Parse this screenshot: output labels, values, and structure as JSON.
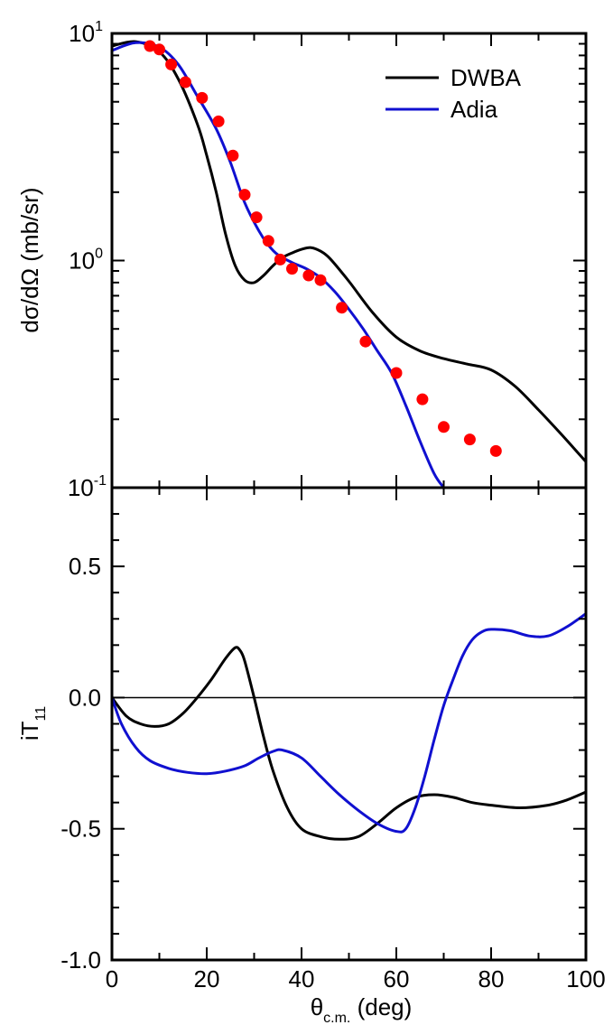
{
  "colors": {
    "dwba": "#000000",
    "adia": "#1010d0",
    "data": "#ff0000",
    "frame": "#000000"
  },
  "chart_data": [
    {
      "type": "line",
      "panel": "top",
      "yscale": "log",
      "xlim": [
        0,
        100
      ],
      "ylim": [
        0.1,
        10
      ],
      "grid": false,
      "legend_placement": "top-right",
      "ylabel": "dσ/dΩ (mb/sr)",
      "x_ticks": [],
      "y_ticks": [
        {
          "base": "10",
          "exp": "-1",
          "value": 0.1
        },
        {
          "base": "10",
          "exp": "0",
          "value": 1
        },
        {
          "base": "10",
          "exp": "1",
          "value": 10
        }
      ],
      "series": [
        {
          "name": "DWBA",
          "x": [
            0,
            5,
            10,
            14,
            18,
            20,
            22,
            24,
            26,
            28,
            30,
            32,
            34,
            36,
            38,
            40,
            42,
            44,
            46,
            50,
            55,
            60,
            65,
            70,
            75,
            80,
            85,
            90,
            95,
            100
          ],
          "y": [
            8.8,
            9.2,
            8.3,
            6.3,
            4.0,
            2.9,
            2.0,
            1.3,
            0.95,
            0.82,
            0.8,
            0.86,
            0.95,
            1.03,
            1.08,
            1.12,
            1.14,
            1.1,
            1.02,
            0.81,
            0.59,
            0.46,
            0.4,
            0.37,
            0.35,
            0.33,
            0.28,
            0.22,
            0.17,
            0.13
          ]
        },
        {
          "name": "Adia",
          "x": [
            0,
            5,
            10,
            14,
            18,
            22,
            25,
            28,
            31,
            33,
            35,
            38,
            41,
            44,
            47,
            50,
            53,
            56,
            59,
            62,
            65,
            68,
            70
          ],
          "y": [
            8.4,
            9.1,
            8.7,
            7.3,
            5.3,
            3.8,
            2.7,
            1.8,
            1.35,
            1.17,
            1.06,
            0.98,
            0.92,
            0.84,
            0.73,
            0.61,
            0.5,
            0.4,
            0.32,
            0.23,
            0.16,
            0.115,
            0.1
          ]
        },
        {
          "name": "",
          "kind": "points",
          "x": [
            8,
            10,
            12.5,
            15.5,
            19,
            22.5,
            25.5,
            28,
            30.5,
            33,
            35.5,
            38,
            41.5,
            44,
            48.5,
            53.5,
            60,
            65.5,
            70,
            75.5,
            81
          ],
          "y": [
            8.8,
            8.5,
            7.3,
            6.1,
            5.2,
            4.1,
            2.9,
            1.95,
            1.55,
            1.22,
            1.01,
            0.92,
            0.86,
            0.82,
            0.62,
            0.44,
            0.32,
            0.245,
            0.185,
            0.163,
            0.145
          ]
        }
      ]
    },
    {
      "type": "line",
      "panel": "bottom",
      "xlim": [
        0,
        100
      ],
      "ylim": [
        -1.0,
        0.8
      ],
      "grid": false,
      "xlabel_main": "θ",
      "xlabel_sub": "c.m.",
      "xlabel_rest": " (deg)",
      "ylabel_main": "iT",
      "ylabel_sub": "11",
      "x_ticks": [
        "0",
        "20",
        "40",
        "60",
        "80",
        "100"
      ],
      "y_ticks": [
        "0.5",
        "0.0",
        "-0.5",
        "-1.0"
      ],
      "y_tick_values": [
        0.5,
        0.0,
        -0.5,
        -1.0
      ],
      "series": [
        {
          "name": "DWBA",
          "x": [
            0,
            3,
            6,
            9,
            12,
            15,
            18,
            21,
            24,
            26,
            27,
            28,
            30,
            32,
            34,
            37,
            40,
            44,
            48,
            52,
            56,
            60,
            64,
            68,
            72,
            76,
            80,
            86,
            92,
            96,
            100
          ],
          "y": [
            0.0,
            -0.07,
            -0.1,
            -0.11,
            -0.1,
            -0.06,
            0.0,
            0.07,
            0.15,
            0.19,
            0.18,
            0.14,
            0.0,
            -0.15,
            -0.28,
            -0.42,
            -0.5,
            -0.53,
            -0.54,
            -0.53,
            -0.48,
            -0.42,
            -0.38,
            -0.37,
            -0.38,
            -0.4,
            -0.41,
            -0.42,
            -0.41,
            -0.39,
            -0.36
          ]
        },
        {
          "name": "Adia",
          "x": [
            0,
            2,
            5,
            8,
            12,
            16,
            20,
            24,
            28,
            31,
            34,
            36,
            40,
            44,
            48,
            52,
            56,
            60,
            62,
            64,
            66,
            68,
            70,
            72,
            74,
            76,
            78,
            80,
            84,
            88,
            92,
            96,
            100
          ],
          "y": [
            0.0,
            -0.1,
            -0.19,
            -0.24,
            -0.27,
            -0.285,
            -0.29,
            -0.28,
            -0.26,
            -0.23,
            -0.205,
            -0.2,
            -0.23,
            -0.3,
            -0.37,
            -0.43,
            -0.48,
            -0.51,
            -0.5,
            -0.42,
            -0.3,
            -0.16,
            -0.03,
            0.07,
            0.16,
            0.22,
            0.25,
            0.26,
            0.255,
            0.235,
            0.235,
            0.27,
            0.32
          ]
        }
      ]
    }
  ]
}
